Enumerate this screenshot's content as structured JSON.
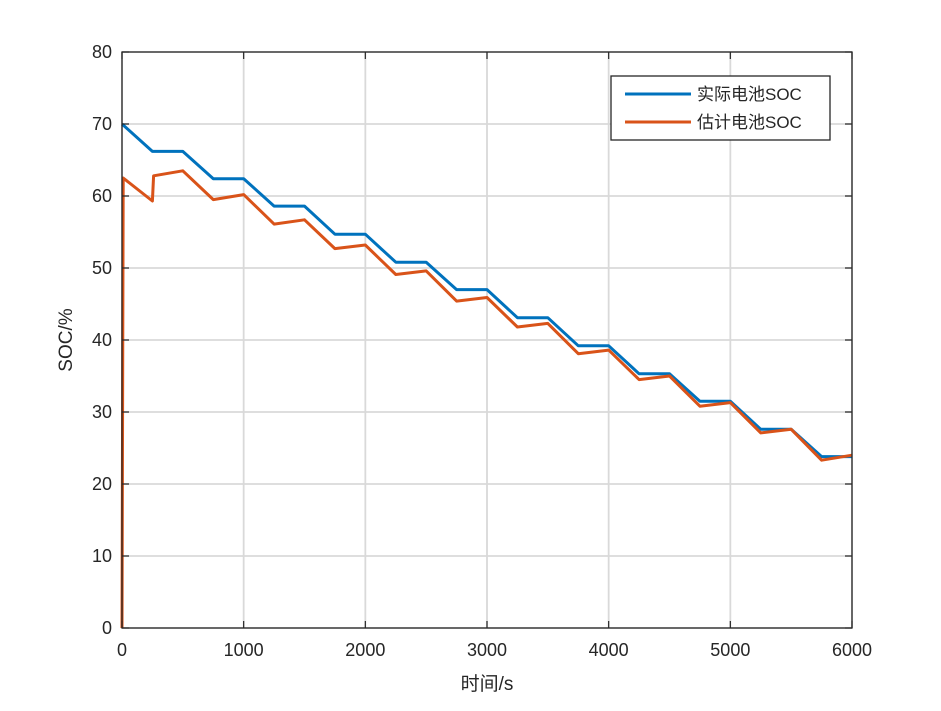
{
  "chart_data": {
    "type": "line",
    "xlabel": "时间/s",
    "ylabel": "SOC/%",
    "xlim": [
      0,
      6000
    ],
    "ylim": [
      0,
      80
    ],
    "xticks": [
      "0",
      "1000",
      "2000",
      "3000",
      "4000",
      "5000",
      "6000"
    ],
    "yticks": [
      "0",
      "10",
      "20",
      "30",
      "40",
      "50",
      "60",
      "70",
      "80"
    ],
    "grid": true,
    "legend_position": "top-right",
    "series": [
      {
        "name": "实际电池SOC",
        "color": "#0072BD",
        "x": [
          0,
          250,
          500,
          750,
          1000,
          1250,
          1500,
          1750,
          2000,
          2250,
          2500,
          2750,
          3000,
          3250,
          3500,
          3750,
          4000,
          4250,
          4500,
          4750,
          5000,
          5250,
          5500,
          5750,
          6000
        ],
        "y": [
          70.0,
          66.2,
          66.2,
          62.4,
          62.4,
          58.6,
          58.6,
          54.7,
          54.7,
          50.8,
          50.8,
          47.0,
          47.0,
          43.1,
          43.1,
          39.2,
          39.2,
          35.3,
          35.3,
          31.5,
          31.5,
          27.6,
          27.6,
          23.8,
          23.8
        ]
      },
      {
        "name": "估计电池SOC",
        "color": "#D95319",
        "x": [
          0,
          10,
          250,
          260,
          500,
          750,
          1000,
          1250,
          1500,
          1750,
          2000,
          2250,
          2500,
          2750,
          3000,
          3250,
          3500,
          3750,
          4000,
          4250,
          4500,
          4750,
          5000,
          5250,
          5500,
          5750,
          6000
        ],
        "y": [
          0,
          62.5,
          59.3,
          62.8,
          63.5,
          59.5,
          60.2,
          56.1,
          56.7,
          52.7,
          53.2,
          49.1,
          49.6,
          45.4,
          45.9,
          41.8,
          42.3,
          38.1,
          38.6,
          34.5,
          35.0,
          30.8,
          31.3,
          27.1,
          27.6,
          23.3,
          24.0
        ]
      }
    ]
  }
}
